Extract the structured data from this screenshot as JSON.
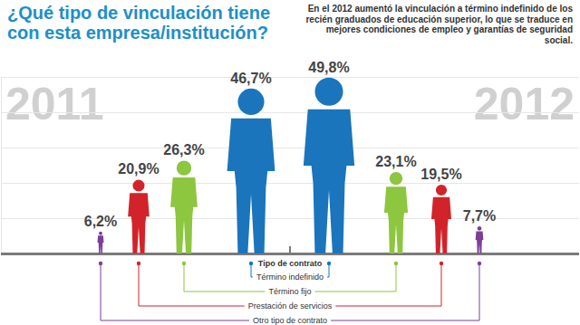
{
  "chart_data": {
    "type": "bar",
    "title": "¿Qué tipo de vinculación tiene con esta empresa/institución?",
    "annotation": "En el 2012 aumentó la vinculación a término indefinido de los recién graduados de educación superior, lo que se traduce en mejores condiciones de empleo y garantías de seguridad social.",
    "legend_title": "Tipo de contrato",
    "categories": [
      "Término indefinido",
      "Término fijo",
      "Prestación de servicios",
      "Otro tipo de contrato"
    ],
    "colors": [
      "#1a75bc",
      "#8dc63f",
      "#d2232a",
      "#7b3f98"
    ],
    "series": [
      {
        "name": "2011",
        "values": [
          46.7,
          26.3,
          20.9,
          6.2
        ],
        "value_labels": [
          "46,7%",
          "26,3%",
          "20,9%",
          "6,2%"
        ]
      },
      {
        "name": "2012",
        "values": [
          49.8,
          23.1,
          19.5,
          7.7
        ],
        "value_labels": [
          "49,8%",
          "23,1%",
          "19,5%",
          "7,7%"
        ]
      }
    ],
    "ylim": [
      0,
      50
    ],
    "yticks": [
      0,
      10,
      20,
      30,
      40,
      50
    ],
    "grid": true,
    "tick_labels": false,
    "data_labels": true
  }
}
